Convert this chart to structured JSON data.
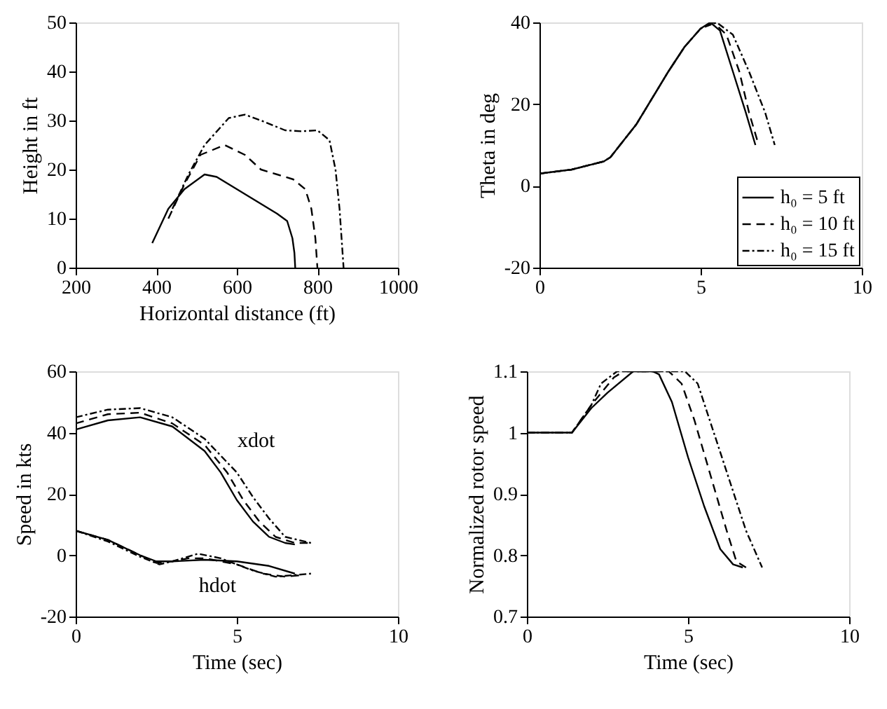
{
  "chart_data": [
    {
      "type": "line",
      "xlabel": "Horizontal distance (ft)",
      "ylabel": "Height in ft",
      "xlim": [
        200,
        1000
      ],
      "ylim": [
        0,
        50
      ],
      "xticks": [
        200,
        400,
        600,
        800,
        {
          "value": 1000,
          "label": "1000"
        }
      ],
      "yticks": [
        0,
        10,
        20,
        30,
        40,
        50
      ],
      "grid": false,
      "series": [
        {
          "color": "#000000",
          "line_style": "solid",
          "x": [
            390,
            430,
            470,
            520,
            550,
            600,
            650,
            700,
            725,
            738,
            743,
            745
          ],
          "values": [
            5,
            12,
            16,
            19,
            18.5,
            16,
            13.5,
            11,
            9.5,
            6,
            3,
            0
          ]
        },
        {
          "color": "#000000",
          "line_style": "dashed",
          "x": [
            430,
            470,
            510,
            570,
            620,
            660,
            700,
            740,
            770,
            785,
            795,
            800
          ],
          "values": [
            10,
            17,
            23,
            25,
            23,
            20,
            19,
            18,
            16,
            12,
            6,
            0
          ]
        },
        {
          "color": "#000000",
          "line_style": "dashdot",
          "x": [
            440,
            480,
            520,
            580,
            620,
            660,
            720,
            760,
            800,
            830,
            845,
            855,
            865
          ],
          "values": [
            12,
            19,
            25,
            30.5,
            31.2,
            30,
            28,
            27.8,
            28,
            26,
            20,
            12,
            0
          ]
        }
      ]
    },
    {
      "type": "line",
      "ylabel": "Theta in deg",
      "xlim": [
        0,
        10
      ],
      "ylim": [
        -20,
        40
      ],
      "xticks": [
        0,
        5,
        10
      ],
      "yticks": [
        -20,
        0,
        20,
        40
      ],
      "grid": false,
      "legend": "bottom right",
      "series": [
        {
          "name": "h₀ = 5 ft",
          "color": "#000000",
          "line_style": "solid",
          "x": [
            0,
            1,
            2,
            2.2,
            3,
            4,
            4.5,
            5,
            5.3,
            5.6,
            6,
            6.4,
            6.7
          ],
          "values": [
            3,
            4,
            6,
            7,
            15,
            28,
            34,
            38.5,
            40,
            38,
            28,
            18,
            10
          ]
        },
        {
          "name": "h₀ = 10 ft",
          "color": "#000000",
          "line_style": "dashed",
          "x": [
            0,
            1,
            2,
            2.2,
            3,
            4,
            4.5,
            5,
            5.4,
            5.8,
            6.2,
            6.5,
            6.8
          ],
          "values": [
            3,
            4,
            6,
            7,
            15,
            28,
            34,
            38.5,
            40,
            37,
            28,
            18,
            10
          ]
        },
        {
          "name": "h₀ = 15 ft",
          "color": "#000000",
          "line_style": "dashdot",
          "x": [
            0,
            1,
            2,
            2.2,
            3,
            4,
            4.5,
            5,
            5.5,
            6,
            6.5,
            7,
            7.3
          ],
          "values": [
            3,
            4,
            6,
            7,
            15,
            28,
            34,
            38.5,
            40,
            37,
            28,
            18,
            10
          ]
        }
      ]
    },
    {
      "type": "line",
      "xlabel": "Time (sec)",
      "ylabel": "Speed in kts",
      "xlim": [
        0,
        10
      ],
      "ylim": [
        -20,
        60
      ],
      "xticks": [
        0,
        5,
        10
      ],
      "yticks": [
        -20,
        0,
        20,
        40,
        60
      ],
      "grid": false,
      "annotations": [
        "xdot",
        "hdot"
      ],
      "series": [
        {
          "color": "#000000",
          "line_style": "solid",
          "x": [
            0,
            1,
            2,
            3,
            4,
            4.5,
            5,
            5.5,
            6,
            6.5,
            6.8
          ],
          "values": [
            41,
            44,
            45,
            42,
            34,
            27,
            18,
            11,
            6,
            4,
            3.5
          ]
        },
        {
          "color": "#000000",
          "line_style": "dashed",
          "x": [
            0,
            1,
            2,
            3,
            4,
            4.7,
            5.2,
            5.7,
            6.2,
            6.8,
            7.2
          ],
          "values": [
            43,
            46,
            46.5,
            43,
            36,
            27,
            18,
            11,
            6,
            4,
            4
          ]
        },
        {
          "color": "#000000",
          "line_style": "dashdot",
          "x": [
            0,
            1,
            2,
            3,
            4,
            5,
            5.5,
            6,
            6.5,
            7.3
          ],
          "values": [
            45,
            47.5,
            48,
            45,
            38,
            27,
            19,
            12,
            6,
            4
          ]
        },
        {
          "color": "#000000",
          "line_style": "solid",
          "x": [
            0,
            1,
            2,
            2.5,
            3,
            4,
            5,
            6,
            6.8
          ],
          "values": [
            8,
            5,
            0,
            -2,
            -2,
            -1.5,
            -2,
            -3.5,
            -6
          ]
        },
        {
          "color": "#000000",
          "line_style": "dashed",
          "x": [
            0,
            1,
            2,
            2.5,
            3,
            3.5,
            4,
            5,
            5.8,
            6.5,
            7
          ],
          "values": [
            8,
            5,
            0,
            -2.5,
            -2,
            -1,
            -1,
            -3,
            -6,
            -7,
            -6.5
          ]
        },
        {
          "color": "#000000",
          "line_style": "dashdot",
          "x": [
            0,
            1,
            2,
            2.6,
            3,
            3.8,
            4.5,
            5.5,
            6.2,
            7.3
          ],
          "values": [
            8,
            4.5,
            -0.5,
            -3,
            -2,
            0.5,
            -1,
            -5,
            -7,
            -6
          ]
        }
      ]
    },
    {
      "type": "line",
      "xlabel": "Time (sec)",
      "ylabel": "Normalized rotor speed",
      "xlim": [
        0,
        10
      ],
      "ylim": [
        0.7,
        1.1
      ],
      "xticks": [
        0,
        5,
        10
      ],
      "yticks": [
        0.7,
        0.8,
        0.9,
        {
          "value": 1,
          "label": "1"
        },
        1.1
      ],
      "grid": false,
      "series": [
        {
          "color": "#000000",
          "line_style": "solid",
          "x": [
            0,
            1.4,
            2,
            2.5,
            3.3,
            3.9,
            4.1,
            4.5,
            5,
            5.5,
            6,
            6.4,
            6.7
          ],
          "values": [
            1,
            1,
            1.04,
            1.065,
            1.1,
            1.1,
            1.095,
            1.05,
            0.96,
            0.88,
            0.81,
            0.785,
            0.78
          ]
        },
        {
          "color": "#000000",
          "line_style": "dashed",
          "x": [
            0,
            1.4,
            2,
            2.7,
            3,
            4.4,
            4.8,
            5.2,
            5.7,
            6.2,
            6.5,
            6.8
          ],
          "values": [
            1,
            1,
            1.045,
            1.09,
            1.1,
            1.1,
            1.08,
            1.02,
            0.93,
            0.84,
            0.79,
            0.78
          ]
        },
        {
          "color": "#000000",
          "line_style": "dashdot",
          "x": [
            0,
            1.4,
            2,
            2.3,
            2.8,
            4.9,
            5.3,
            5.8,
            6.3,
            6.8,
            7.3
          ],
          "values": [
            1,
            1,
            1.045,
            1.08,
            1.1,
            1.1,
            1.08,
            1,
            0.92,
            0.84,
            0.78
          ]
        }
      ]
    }
  ]
}
